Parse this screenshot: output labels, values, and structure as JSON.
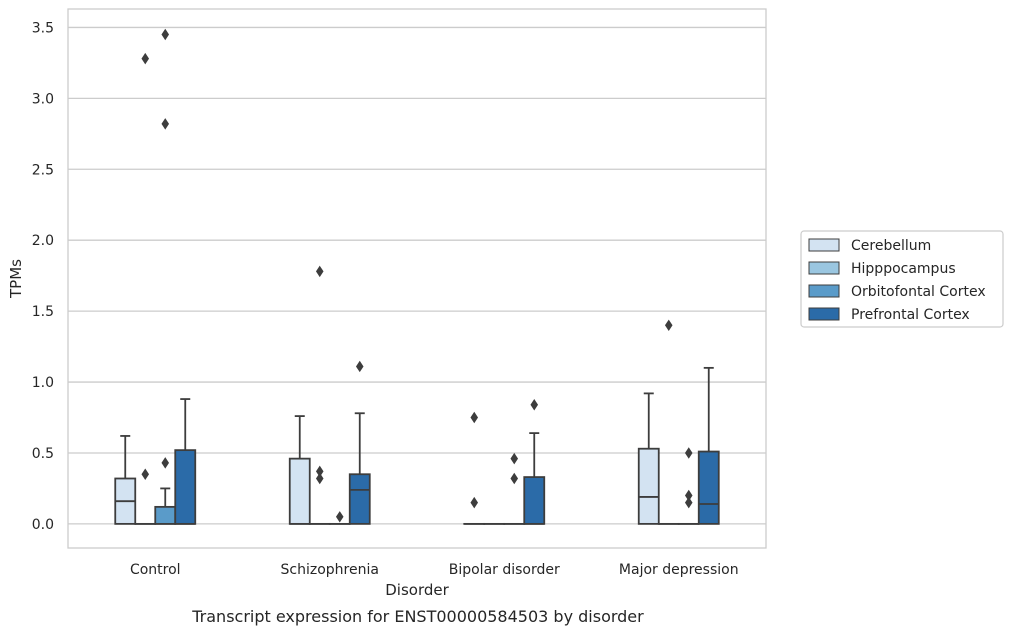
{
  "caption": "Transcript expression for ENST00000584503 by disorder",
  "chart_data": {
    "type": "box",
    "xlabel": "Disorder",
    "ylabel": "TPMs",
    "ylim": [
      -0.17,
      3.63
    ],
    "yticks": [
      0.0,
      0.5,
      1.0,
      1.5,
      2.0,
      2.5,
      3.0,
      3.5
    ],
    "ytick_labels": [
      "0.0",
      "0.5",
      "1.0",
      "1.5",
      "2.0",
      "2.5",
      "3.0",
      "3.5"
    ],
    "grid": "horizontal",
    "legend_position": "right",
    "categories": [
      "Control",
      "Schizophrenia",
      "Bipolar disorder",
      "Major depression"
    ],
    "series": [
      {
        "name": "Cerebellum",
        "color": "#d3e3f2",
        "boxes": [
          {
            "q1": 0.0,
            "median": 0.16,
            "q3": 0.32,
            "whisker_low": 0.0,
            "whisker_high": 0.62,
            "outliers": []
          },
          {
            "q1": 0.0,
            "median": 0.0,
            "q3": 0.46,
            "whisker_low": 0.0,
            "whisker_high": 0.76,
            "outliers": []
          },
          {
            "q1": 0.0,
            "median": 0.0,
            "q3": 0.0,
            "whisker_low": 0.0,
            "whisker_high": 0.0,
            "outliers": [
              0.75,
              0.15
            ]
          },
          {
            "q1": 0.0,
            "median": 0.19,
            "q3": 0.53,
            "whisker_low": 0.0,
            "whisker_high": 0.92,
            "outliers": []
          }
        ]
      },
      {
        "name": "Hipppocampus",
        "color": "#9ac6e0",
        "boxes": [
          {
            "q1": 0.0,
            "median": 0.0,
            "q3": 0.0,
            "whisker_low": 0.0,
            "whisker_high": 0.0,
            "outliers": [
              0.35,
              3.28
            ]
          },
          {
            "q1": 0.0,
            "median": 0.0,
            "q3": 0.0,
            "whisker_low": 0.0,
            "whisker_high": 0.0,
            "outliers": [
              0.37,
              0.32,
              1.78
            ]
          },
          {
            "q1": 0.0,
            "median": 0.0,
            "q3": 0.0,
            "whisker_low": 0.0,
            "whisker_high": 0.0,
            "outliers": []
          },
          {
            "q1": 0.0,
            "median": 0.0,
            "q3": 0.0,
            "whisker_low": 0.0,
            "whisker_high": 0.0,
            "outliers": [
              1.4
            ]
          }
        ]
      },
      {
        "name": "Orbitofontal Cortex",
        "color": "#5a9bc9",
        "boxes": [
          {
            "q1": 0.0,
            "median": 0.0,
            "q3": 0.12,
            "whisker_low": 0.0,
            "whisker_high": 0.25,
            "outliers": [
              0.43,
              3.45,
              2.82
            ]
          },
          {
            "q1": 0.0,
            "median": 0.0,
            "q3": 0.0,
            "whisker_low": 0.0,
            "whisker_high": 0.0,
            "outliers": [
              0.05
            ]
          },
          {
            "q1": 0.0,
            "median": 0.0,
            "q3": 0.0,
            "whisker_low": 0.0,
            "whisker_high": 0.0,
            "outliers": [
              0.46,
              0.32
            ]
          },
          {
            "q1": 0.0,
            "median": 0.0,
            "q3": 0.0,
            "whisker_low": 0.0,
            "whisker_high": 0.0,
            "outliers": [
              0.5,
              0.2,
              0.15
            ]
          }
        ]
      },
      {
        "name": "Prefrontal Cortex",
        "color": "#2b6ba8",
        "boxes": [
          {
            "q1": 0.0,
            "median": 0.0,
            "q3": 0.52,
            "whisker_low": 0.0,
            "whisker_high": 0.88,
            "outliers": []
          },
          {
            "q1": 0.0,
            "median": 0.24,
            "q3": 0.35,
            "whisker_low": 0.0,
            "whisker_high": 0.78,
            "outliers": [
              1.11
            ]
          },
          {
            "q1": 0.0,
            "median": 0.0,
            "q3": 0.33,
            "whisker_low": 0.0,
            "whisker_high": 0.64,
            "outliers": [
              0.84
            ]
          },
          {
            "q1": 0.0,
            "median": 0.14,
            "q3": 0.51,
            "whisker_low": 0.0,
            "whisker_high": 1.1,
            "outliers": []
          }
        ]
      }
    ]
  }
}
